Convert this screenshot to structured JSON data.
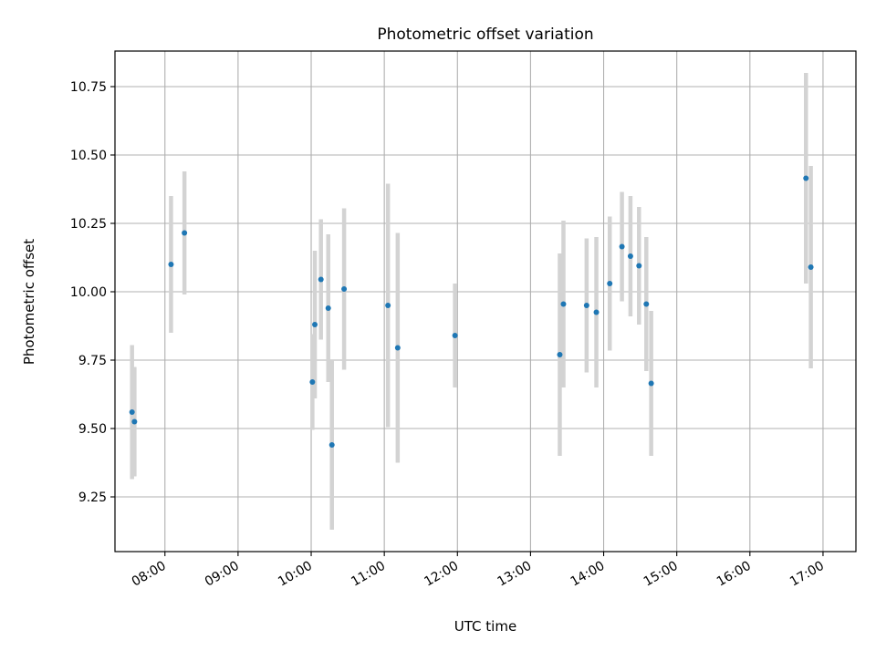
{
  "chart_data": {
    "type": "scatter",
    "title": "Photometric offset variation",
    "xlabel": "UTC time",
    "ylabel": "Photometric offset",
    "x_ticks": [
      "08:00",
      "09:00",
      "10:00",
      "11:00",
      "12:00",
      "13:00",
      "14:00",
      "15:00",
      "16:00",
      "17:00"
    ],
    "y_ticks": [
      "9.25",
      "9.50",
      "9.75",
      "10.00",
      "10.25",
      "10.50",
      "10.75"
    ],
    "xlim": [
      "07:19",
      "17:27"
    ],
    "ylim": [
      9.05,
      10.88
    ],
    "grid": true,
    "series": [
      {
        "marker_color": "#1f77b4",
        "errorbar_color": "#d3d3d3",
        "points": [
          {
            "x": "07:33",
            "y": 9.56,
            "yerr": 0.245
          },
          {
            "x": "07:35",
            "y": 9.525,
            "yerr": 0.2
          },
          {
            "x": "08:05",
            "y": 10.1,
            "yerr": 0.25
          },
          {
            "x": "08:16",
            "y": 10.215,
            "yerr": 0.225
          },
          {
            "x": "10:01",
            "y": 9.67,
            "yerr": 0.175
          },
          {
            "x": "10:03",
            "y": 9.88,
            "yerr": 0.27
          },
          {
            "x": "10:08",
            "y": 10.045,
            "yerr": 0.22
          },
          {
            "x": "10:14",
            "y": 9.94,
            "yerr": 0.27
          },
          {
            "x": "10:17",
            "y": 9.44,
            "yerr": 0.31
          },
          {
            "x": "10:27",
            "y": 10.01,
            "yerr": 0.295
          },
          {
            "x": "11:03",
            "y": 9.95,
            "yerr": 0.445
          },
          {
            "x": "11:11",
            "y": 9.795,
            "yerr": 0.42
          },
          {
            "x": "11:58",
            "y": 9.84,
            "yerr": 0.19
          },
          {
            "x": "13:24",
            "y": 9.77,
            "yerr": 0.37
          },
          {
            "x": "13:27",
            "y": 9.955,
            "yerr": 0.305
          },
          {
            "x": "13:46",
            "y": 9.95,
            "yerr": 0.245
          },
          {
            "x": "13:54",
            "y": 9.925,
            "yerr": 0.275
          },
          {
            "x": "14:05",
            "y": 10.03,
            "yerr": 0.245
          },
          {
            "x": "14:15",
            "y": 10.165,
            "yerr": 0.2
          },
          {
            "x": "14:22",
            "y": 10.13,
            "yerr": 0.22
          },
          {
            "x": "14:29",
            "y": 10.095,
            "yerr": 0.215
          },
          {
            "x": "14:35",
            "y": 9.955,
            "yerr": 0.245
          },
          {
            "x": "14:39",
            "y": 9.665,
            "yerr": 0.265
          },
          {
            "x": "16:46",
            "y": 10.415,
            "yerr": 0.385
          },
          {
            "x": "16:50",
            "y": 10.09,
            "yerr": 0.37
          }
        ]
      }
    ]
  }
}
